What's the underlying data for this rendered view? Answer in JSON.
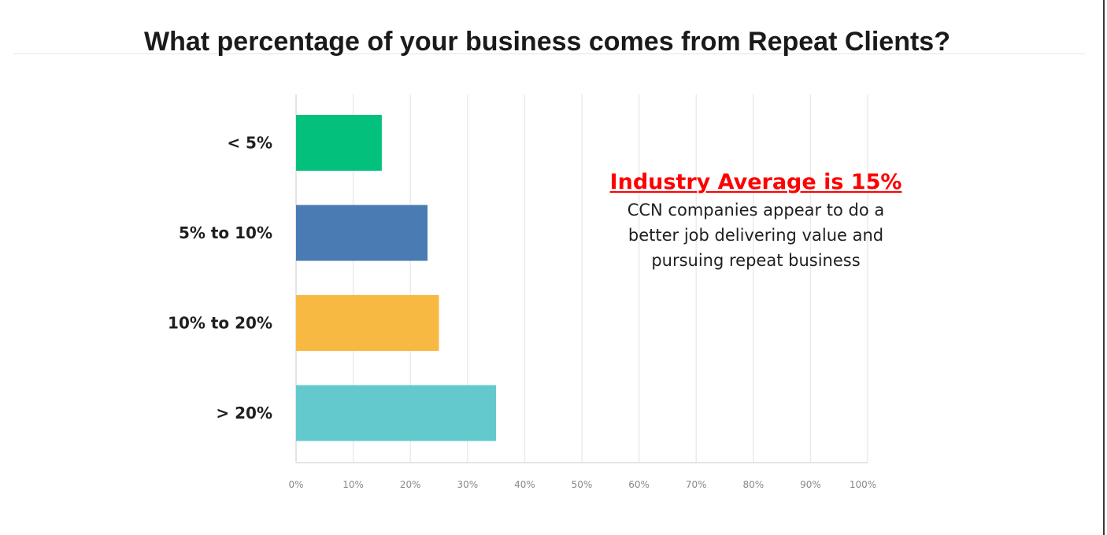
{
  "chart_data": {
    "type": "bar",
    "orientation": "horizontal",
    "title": "What percentage of your business comes from Repeat Clients?",
    "categories": [
      "< 5%",
      "5% to 10%",
      "10% to 20%",
      "> 20%"
    ],
    "values": [
      15,
      23,
      25,
      35
    ],
    "colors": [
      "#03c17c",
      "#4a7bb3",
      "#f8b942",
      "#63c9cc"
    ],
    "xlim": [
      0,
      100
    ],
    "xticks": [
      "0%",
      "10%",
      "20%",
      "30%",
      "40%",
      "50%",
      "60%",
      "70%",
      "80%",
      "90%",
      "100%"
    ],
    "grid": true,
    "xlabel": "",
    "ylabel": ""
  },
  "annotation": {
    "title": "Industry Average is 15%",
    "lines": [
      "CCN companies appear to do a",
      "better job delivering value and",
      "pursuing repeat business"
    ],
    "title_color": "#ff0000"
  }
}
